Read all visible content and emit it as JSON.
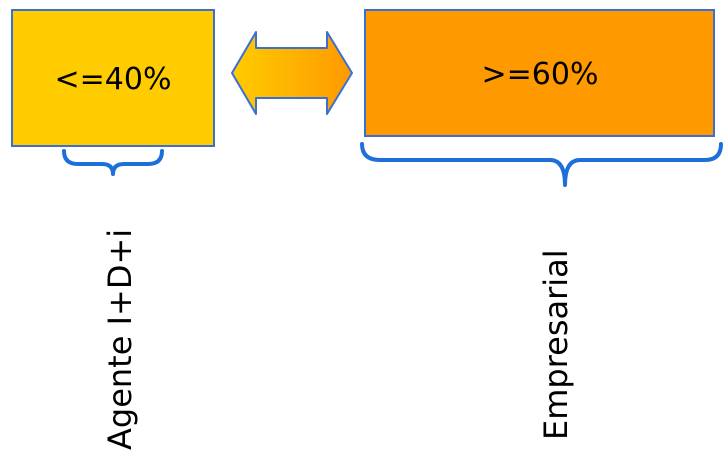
{
  "left_box": {
    "label": "<=40%",
    "fill_color": "#ffcc00",
    "border_color": "#3b6fd4"
  },
  "right_box": {
    "label": ">=60%",
    "fill_color": "#ff9900",
    "border_color": "#3b6fd4"
  },
  "arrow": {
    "icon": "double-headed-arrow-icon",
    "color_start": "#ffcc00",
    "color_end": "#ff9900"
  },
  "left_group": {
    "label": "Agente I+D+i"
  },
  "right_group": {
    "label": "Empresarial"
  },
  "brace_color": "#1e6fd9"
}
